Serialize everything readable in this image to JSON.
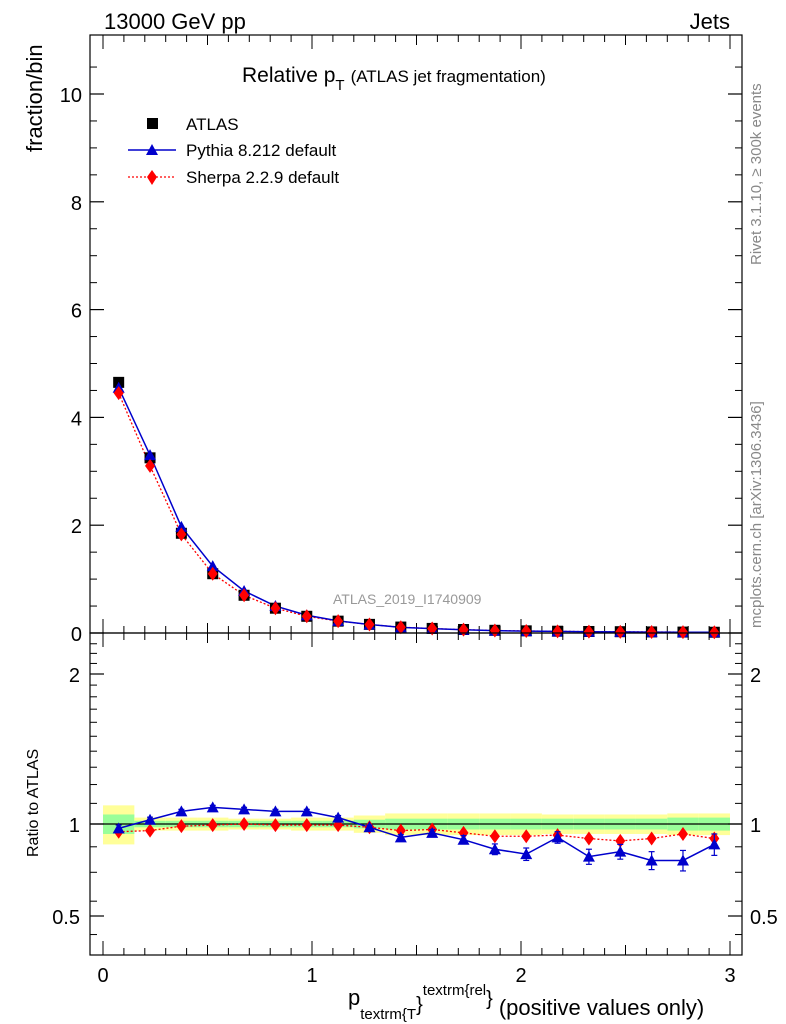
{
  "header": {
    "left": "13000 GeV pp",
    "right": "Jets"
  },
  "title": {
    "main": "Relative p",
    "sub": "T",
    "suffix": "(ATLAS jet fragmentation)"
  },
  "side_labels": {
    "rivet": "Rivet 3.1.10, ≥ 300k events",
    "mcplots": "mcplots.cern.ch [arXiv:1306.3436]"
  },
  "watermark": "ATLAS_2019_I1740909",
  "xlabel": {
    "p": "p",
    "sub": "textrm{T",
    "sup": "textrm{rel",
    "brace1": "}",
    "brace2": "}",
    "suffix": "(positive values only)"
  },
  "colors": {
    "data": "#000000",
    "pythia": "#0000cc",
    "sherpa": "#ff0000",
    "band_outer": "#ffff99",
    "band_inner": "#99ff99"
  },
  "chart_data": [
    {
      "type": "line",
      "panel": "main",
      "ylabel": "fraction/bin",
      "xlim": [
        -0.06,
        3.05
      ],
      "ylim": [
        0,
        11.1
      ],
      "yticks": [
        0,
        2,
        4,
        6,
        8,
        10
      ],
      "ytick_labels": [
        "0",
        "2",
        "4",
        "6",
        "8",
        "10"
      ],
      "x": [
        0.075,
        0.225,
        0.375,
        0.525,
        0.675,
        0.825,
        0.975,
        1.125,
        1.275,
        1.425,
        1.575,
        1.725,
        1.875,
        2.025,
        2.175,
        2.325,
        2.475,
        2.625,
        2.775,
        2.925
      ],
      "series": [
        {
          "name": "ATLAS",
          "values": [
            4.65,
            3.25,
            1.85,
            1.1,
            0.7,
            0.46,
            0.31,
            0.22,
            0.16,
            0.11,
            0.085,
            0.065,
            0.05,
            0.04,
            0.033,
            0.028,
            0.024,
            0.02,
            0.017,
            0.014
          ]
        },
        {
          "name": "Pythia 8.212 default",
          "values": [
            4.55,
            3.3,
            1.97,
            1.24,
            0.78,
            0.5,
            0.33,
            0.225,
            0.158,
            0.104,
            0.082,
            0.06,
            0.044,
            0.035,
            0.031,
            0.024,
            0.021,
            0.017,
            0.014,
            0.013
          ]
        },
        {
          "name": "Sherpa 2.2.9 default",
          "values": [
            4.45,
            3.1,
            1.83,
            1.1,
            0.7,
            0.46,
            0.31,
            0.22,
            0.158,
            0.107,
            0.083,
            0.062,
            0.047,
            0.038,
            0.031,
            0.026,
            0.022,
            0.019,
            0.016,
            0.013
          ]
        }
      ],
      "legend": [
        "ATLAS",
        "Pythia 8.212 default",
        "Sherpa 2.2.9 default"
      ]
    },
    {
      "type": "line",
      "panel": "ratio",
      "ylabel": "Ratio to ATLAS",
      "xlabel": "p textrm{T}^{textrm{rel}} (positive values only)",
      "xlim": [
        -0.06,
        3.05
      ],
      "ylim": [
        0.35,
        2.35
      ],
      "ytick_labels": [
        "0.5",
        "1",
        "2"
      ],
      "xtick_labels": [
        "0",
        "1",
        "2",
        "3"
      ],
      "x": [
        0.075,
        0.225,
        0.375,
        0.525,
        0.675,
        0.825,
        0.975,
        1.125,
        1.275,
        1.425,
        1.575,
        1.725,
        1.875,
        2.025,
        2.175,
        2.325,
        2.475,
        2.625,
        2.775,
        2.925
      ],
      "series": [
        {
          "name": "Pythia 8.212 default",
          "values": [
            0.98,
            1.02,
            1.06,
            1.08,
            1.07,
            1.06,
            1.06,
            1.03,
            0.985,
            0.94,
            0.96,
            0.93,
            0.89,
            0.87,
            0.94,
            0.86,
            0.88,
            0.845,
            0.845,
            0.91
          ]
        },
        {
          "name": "Sherpa 2.2.9 default",
          "values": [
            0.965,
            0.97,
            0.99,
            0.995,
            1.0,
            0.995,
            0.995,
            0.995,
            0.985,
            0.97,
            0.975,
            0.96,
            0.945,
            0.945,
            0.95,
            0.935,
            0.925,
            0.935,
            0.955,
            0.935
          ]
        }
      ],
      "band_halfwidths_outer": [
        0.09,
        0.03,
        0.03,
        0.03,
        0.025,
        0.025,
        0.03,
        0.03,
        0.04,
        0.05,
        0.05,
        0.05,
        0.05,
        0.05,
        0.045,
        0.045,
        0.045,
        0.045,
        0.05,
        0.05
      ],
      "band_halfwidths_inner": [
        0.045,
        0.015,
        0.015,
        0.015,
        0.015,
        0.015,
        0.015,
        0.015,
        0.02,
        0.025,
        0.025,
        0.025,
        0.025,
        0.025,
        0.025,
        0.025,
        0.025,
        0.025,
        0.03,
        0.03
      ],
      "errors_pythia": [
        0.015,
        0.012,
        0.01,
        0.01,
        0.01,
        0.01,
        0.01,
        0.01,
        0.01,
        0.012,
        0.015,
        0.018,
        0.022,
        0.025,
        0.025,
        0.03,
        0.03,
        0.035,
        0.04,
        0.045
      ],
      "errors_sherpa": [
        0.012,
        0.01,
        0.008,
        0.008,
        0.008,
        0.008,
        0.008,
        0.008,
        0.008,
        0.01,
        0.012,
        0.012,
        0.014,
        0.016,
        0.016,
        0.018,
        0.018,
        0.02,
        0.022,
        0.025
      ]
    }
  ]
}
